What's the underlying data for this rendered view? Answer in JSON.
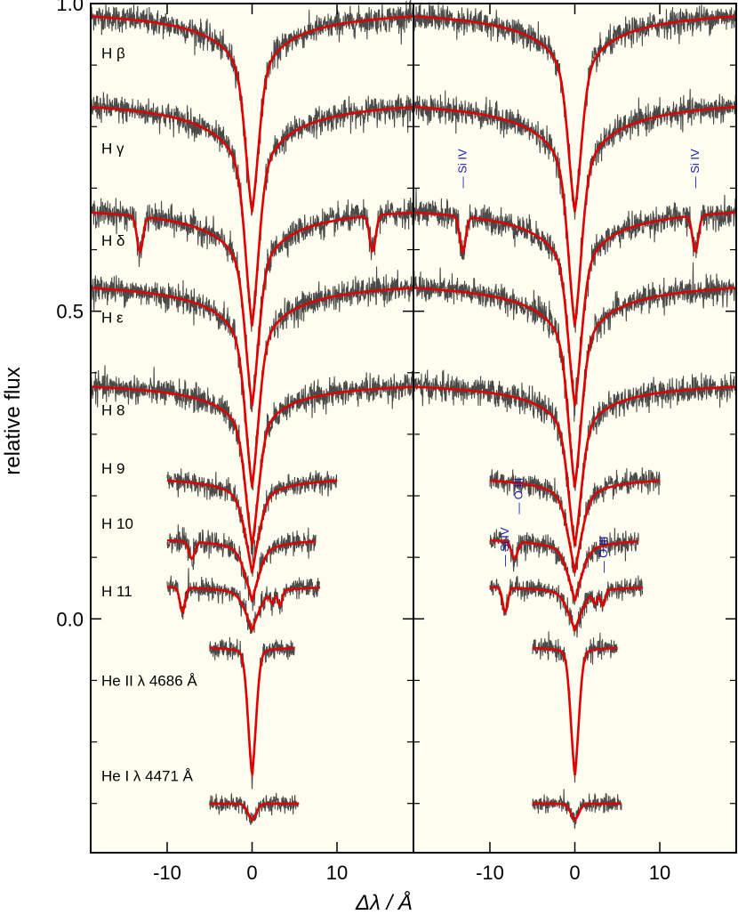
{
  "chart_data": {
    "type": "line",
    "xlabel": "Δλ / Å",
    "ylabel": "relative flux",
    "background": "#fdfdf0",
    "colors": {
      "observed": "#4a4a4a",
      "model": "#e00000",
      "ion_label": "#1a1ab4"
    },
    "panels": [
      {
        "name": "left",
        "xlim": [
          -19,
          19
        ],
        "xticks": [
          -10,
          0,
          10
        ],
        "xtick_labels": [
          "-10",
          "0",
          "10"
        ],
        "ylim": [
          -0.38,
          1.0
        ],
        "yticks": [
          0.0,
          0.5,
          1.0
        ],
        "ytick_labels": [
          "0.0",
          "0.5",
          "1.0"
        ],
        "minor_yticks": [
          -0.3,
          -0.2,
          -0.1,
          0.1,
          0.2,
          0.3,
          0.4,
          0.6,
          0.7,
          0.8,
          0.9
        ],
        "ion_labels": [],
        "series": [
          {
            "name": "H β",
            "label_y": 0.92,
            "continuum": 0.997,
            "xrange": [
              -19,
              19
            ],
            "depth": 0.335,
            "core_width": 0.8,
            "wing_width": 17,
            "wing_frac": 0.55,
            "noise": 0.011,
            "extra_lines": []
          },
          {
            "name": "H γ",
            "label_y": 0.765,
            "continuum": 0.852,
            "xrange": [
              -19,
              19
            ],
            "depth": 0.375,
            "core_width": 0.8,
            "wing_width": 17,
            "wing_frac": 0.55,
            "noise": 0.011,
            "extra_lines": []
          },
          {
            "name": "H δ",
            "label_y": 0.615,
            "continuum": 0.677,
            "xrange": [
              -19,
              19
            ],
            "depth": 0.33,
            "core_width": 0.8,
            "wing_width": 16,
            "wing_frac": 0.55,
            "noise": 0.011,
            "extra_lines": [
              {
                "x": -13.2,
                "depth": 0.058,
                "width": 0.35
              },
              {
                "x": 14.2,
                "depth": 0.058,
                "width": 0.35
              }
            ]
          },
          {
            "name": "H ε",
            "label_y": 0.49,
            "continuum": 0.555,
            "xrange": [
              -19,
              19
            ],
            "depth": 0.34,
            "core_width": 0.8,
            "wing_width": 16,
            "wing_frac": 0.55,
            "noise": 0.011,
            "extra_lines": []
          },
          {
            "name": "H 8",
            "label_y": 0.34,
            "continuum": 0.39,
            "xrange": [
              -19,
              19
            ],
            "depth": 0.27,
            "core_width": 0.8,
            "wing_width": 15,
            "wing_frac": 0.55,
            "noise": 0.011,
            "extra_lines": []
          },
          {
            "name": "H 9",
            "label_y": 0.245,
            "continuum": 0.234,
            "xrange": [
              -10,
              10
            ],
            "depth": 0.16,
            "core_width": 0.9,
            "wing_width": 9,
            "wing_frac": 0.6,
            "noise": 0.009,
            "extra_lines": []
          },
          {
            "name": "H 10",
            "label_y": 0.155,
            "continuum": 0.133,
            "xrange": [
              -10,
              7.5
            ],
            "depth": 0.105,
            "core_width": 0.9,
            "wing_width": 8,
            "wing_frac": 0.6,
            "noise": 0.009,
            "extra_lines": [
              {
                "x": -7.1,
                "depth": 0.028,
                "width": 0.35
              }
            ]
          },
          {
            "name": "H 11",
            "label_y": 0.045,
            "continuum": 0.055,
            "xrange": [
              -10,
              8
            ],
            "depth": 0.075,
            "core_width": 0.9,
            "wing_width": 7,
            "wing_frac": 0.6,
            "noise": 0.008,
            "extra_lines": [
              {
                "x": -8.2,
                "depth": 0.04,
                "width": 0.3
              },
              {
                "x": 2.4,
                "depth": 0.018,
                "width": 0.25
              },
              {
                "x": 3.3,
                "depth": 0.025,
                "width": 0.25
              }
            ]
          },
          {
            "name": "He II λ 4686 Å",
            "label_y": -0.1,
            "continuum": -0.045,
            "xrange": [
              -5,
              5
            ],
            "depth": 0.215,
            "core_width": 0.5,
            "wing_width": 2,
            "wing_frac": 0.25,
            "noise": 0.008,
            "extra_lines": []
          },
          {
            "name": "He I λ 4471 Å",
            "label_y": -0.255,
            "continuum": -0.3,
            "xrange": [
              -5,
              5.5
            ],
            "depth": 0.028,
            "core_width": 0.5,
            "wing_width": 1.5,
            "wing_frac": 0.2,
            "noise": 0.007,
            "extra_lines": []
          }
        ]
      },
      {
        "name": "right",
        "xlim": [
          -19,
          19
        ],
        "xticks": [
          -10,
          0,
          10
        ],
        "xtick_labels": [
          "-10",
          "0",
          "10"
        ],
        "ylim": [
          -0.38,
          1.0
        ],
        "yticks": [
          0.0,
          0.5,
          1.0
        ],
        "ytick_labels": [
          "",
          "",
          ""
        ],
        "minor_yticks": [
          -0.3,
          -0.2,
          -0.1,
          0.1,
          0.2,
          0.3,
          0.4,
          0.6,
          0.7,
          0.8,
          0.9
        ],
        "ion_labels": [
          {
            "text": "— Si IV",
            "x": -13.2,
            "y": 0.7
          },
          {
            "text": "— Si IV",
            "x": 14.2,
            "y": 0.7
          },
          {
            "text": "— O III",
            "x": -6.6,
            "y": 0.17
          },
          {
            "text": "— Si IV",
            "x": -8.2,
            "y": 0.085
          },
          {
            "text": "— O III",
            "x": 3.4,
            "y": 0.075
          }
        ],
        "series": [
          {
            "name": "",
            "continuum": 0.997,
            "xrange": [
              -19,
              19
            ],
            "depth": 0.335,
            "core_width": 0.8,
            "wing_width": 17,
            "wing_frac": 0.55,
            "noise": 0.011,
            "extra_lines": []
          },
          {
            "name": "",
            "continuum": 0.852,
            "xrange": [
              -19,
              19
            ],
            "depth": 0.375,
            "core_width": 0.8,
            "wing_width": 17,
            "wing_frac": 0.55,
            "noise": 0.011,
            "extra_lines": []
          },
          {
            "name": "",
            "continuum": 0.677,
            "xrange": [
              -19,
              19
            ],
            "depth": 0.33,
            "core_width": 0.8,
            "wing_width": 16,
            "wing_frac": 0.55,
            "noise": 0.011,
            "extra_lines": [
              {
                "x": -13.2,
                "depth": 0.058,
                "width": 0.35
              },
              {
                "x": 14.2,
                "depth": 0.058,
                "width": 0.35
              }
            ]
          },
          {
            "name": "",
            "continuum": 0.555,
            "xrange": [
              -19,
              19
            ],
            "depth": 0.34,
            "core_width": 0.8,
            "wing_width": 16,
            "wing_frac": 0.55,
            "noise": 0.011,
            "extra_lines": []
          },
          {
            "name": "",
            "continuum": 0.39,
            "xrange": [
              -19,
              19
            ],
            "depth": 0.27,
            "core_width": 0.8,
            "wing_width": 15,
            "wing_frac": 0.55,
            "noise": 0.011,
            "extra_lines": []
          },
          {
            "name": "",
            "continuum": 0.234,
            "xrange": [
              -10,
              10
            ],
            "depth": 0.16,
            "core_width": 0.9,
            "wing_width": 9,
            "wing_frac": 0.6,
            "noise": 0.009,
            "extra_lines": []
          },
          {
            "name": "",
            "continuum": 0.133,
            "xrange": [
              -10,
              7.5
            ],
            "depth": 0.105,
            "core_width": 0.9,
            "wing_width": 8,
            "wing_frac": 0.6,
            "noise": 0.009,
            "extra_lines": [
              {
                "x": -7.1,
                "depth": 0.028,
                "width": 0.35
              }
            ]
          },
          {
            "name": "",
            "continuum": 0.055,
            "xrange": [
              -10,
              8
            ],
            "depth": 0.075,
            "core_width": 0.9,
            "wing_width": 7,
            "wing_frac": 0.6,
            "noise": 0.008,
            "extra_lines": [
              {
                "x": -8.2,
                "depth": 0.04,
                "width": 0.3
              },
              {
                "x": 2.4,
                "depth": 0.018,
                "width": 0.25
              },
              {
                "x": 3.3,
                "depth": 0.025,
                "width": 0.25
              }
            ]
          },
          {
            "name": "",
            "continuum": -0.045,
            "xrange": [
              -5,
              5
            ],
            "depth": 0.215,
            "core_width": 0.5,
            "wing_width": 2,
            "wing_frac": 0.25,
            "noise": 0.008,
            "extra_lines": []
          },
          {
            "name": "",
            "continuum": -0.3,
            "xrange": [
              -5,
              5.5
            ],
            "depth": 0.028,
            "core_width": 0.5,
            "wing_width": 1.5,
            "wing_frac": 0.2,
            "noise": 0.007,
            "extra_lines": []
          }
        ]
      }
    ]
  }
}
